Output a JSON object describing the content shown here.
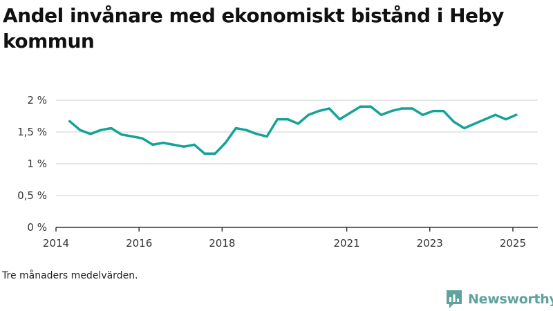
{
  "title": "Andel invånare med ekonomiskt bistånd i Heby kommun",
  "caption": "Tre månaders medelvärden.",
  "brand": {
    "name": "Newsworthy",
    "color": "#5fa39d"
  },
  "colors": {
    "line": "#14a396",
    "grid": "#dddddd",
    "axis": "#333333"
  },
  "chart_data": {
    "type": "line",
    "title": "Andel invånare med ekonomiskt bistånd i Heby kommun",
    "xlabel": "",
    "ylabel": "",
    "ylim": [
      0,
      2
    ],
    "xlim": [
      2014.0,
      2025.6
    ],
    "yticks": [
      {
        "value": 0,
        "label": "0 %"
      },
      {
        "value": 0.5,
        "label": "0,5 %"
      },
      {
        "value": 1,
        "label": "1 %"
      },
      {
        "value": 1.5,
        "label": "1,5 %"
      },
      {
        "value": 2,
        "label": "2 %"
      }
    ],
    "xticks": [
      {
        "value": 2014,
        "label": "2014"
      },
      {
        "value": 2016,
        "label": "2016"
      },
      {
        "value": 2018,
        "label": "2018"
      },
      {
        "value": 2021,
        "label": "2021"
      },
      {
        "value": 2023,
        "label": "2023"
      },
      {
        "value": 2025,
        "label": "2025"
      }
    ],
    "grid": true,
    "series": [
      {
        "x": [
          2014.33,
          2014.58,
          2014.83,
          2015.08,
          2015.33,
          2015.58,
          2015.83,
          2016.08,
          2016.33,
          2016.58,
          2016.83,
          2017.08,
          2017.33,
          2017.58,
          2017.83,
          2018.08,
          2018.33,
          2018.58,
          2018.83,
          2019.08,
          2019.33,
          2019.58,
          2019.83,
          2020.08,
          2020.33,
          2020.58,
          2020.83,
          2021.08,
          2021.33,
          2021.58,
          2021.83,
          2022.08,
          2022.33,
          2022.58,
          2022.83,
          2023.08,
          2023.33,
          2023.58,
          2023.83,
          2024.08,
          2024.33,
          2024.58,
          2024.83,
          2025.08
        ],
        "values": [
          1.67,
          1.53,
          1.47,
          1.53,
          1.56,
          1.46,
          1.43,
          1.4,
          1.3,
          1.33,
          1.3,
          1.27,
          1.3,
          1.16,
          1.16,
          1.33,
          1.56,
          1.53,
          1.47,
          1.43,
          1.7,
          1.7,
          1.63,
          1.77,
          1.83,
          1.87,
          1.7,
          1.8,
          1.9,
          1.9,
          1.77,
          1.83,
          1.87,
          1.87,
          1.77,
          1.83,
          1.83,
          1.66,
          1.56,
          1.63,
          1.7,
          1.77,
          1.7,
          1.77
        ]
      }
    ]
  }
}
